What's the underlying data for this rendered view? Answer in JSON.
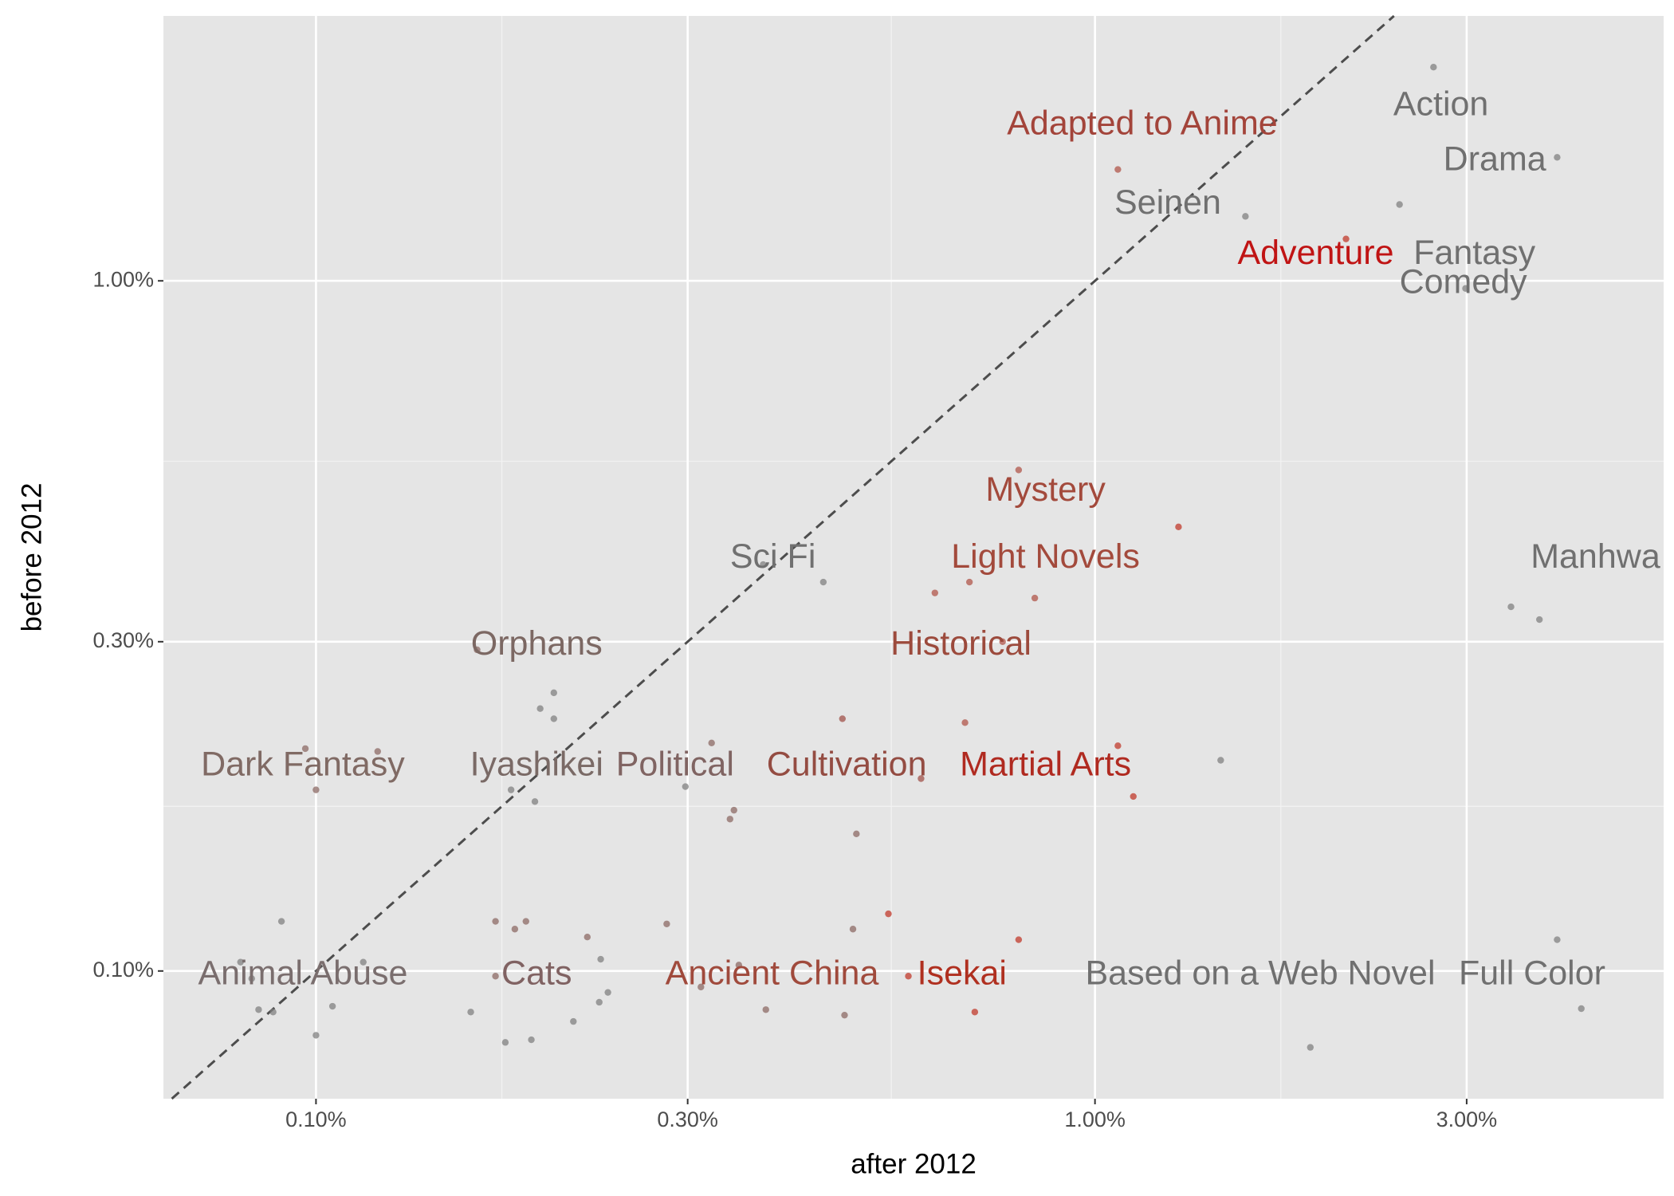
{
  "chart_data": {
    "type": "scatter",
    "x_label": "after 2012",
    "y_label": "before 2012",
    "xscale": "log",
    "yscale": "log",
    "xlim": [
      0.0637,
      5.37
    ],
    "ylim": [
      0.0653,
      2.42
    ],
    "xticks": [
      {
        "value": 0.1,
        "label": "0.10%"
      },
      {
        "value": 0.3,
        "label": "0.30%"
      },
      {
        "value": 1,
        "label": "1.00%"
      },
      {
        "value": 3,
        "label": "3.00%"
      }
    ],
    "yticks": [
      {
        "value": 0.1,
        "label": "0.10%"
      },
      {
        "value": 0.3,
        "label": "0.30%"
      },
      {
        "value": 1,
        "label": "1.00%"
      }
    ],
    "grid": true,
    "identity_line": true,
    "x": [
      2.72,
      3.92,
      1.07,
      2.46,
      1.56,
      2.1,
      2.99,
      0.798,
      1.28,
      0.448,
      0.623,
      0.69,
      0.837,
      3.42,
      3.72,
      0.375,
      0.761,
      0.161,
      0.202,
      0.194,
      0.202,
      0.474,
      0.681,
      0.0969,
      0.12,
      0.322,
      1.07,
      1.45,
      0.1,
      0.178,
      0.298,
      0.598,
      1.12,
      0.191,
      0.344,
      0.34,
      0.494,
      0.543,
      0.0903,
      0.17,
      0.186,
      0.18,
      0.282,
      0.489,
      0.798,
      0.223,
      3.92,
      0.08,
      0.115,
      0.232,
      0.349,
      0.17,
      0.576,
      0.0827,
      0.312,
      0.237,
      0.231,
      0.105,
      0.0844,
      0.0881,
      0.158,
      0.378,
      0.477,
      0.701,
      4.21,
      0.214,
      0.1,
      0.189,
      0.175,
      1.89
    ],
    "y": [
      2.04,
      1.51,
      1.45,
      1.29,
      1.24,
      1.15,
      0.975,
      0.532,
      0.44,
      0.366,
      0.353,
      0.366,
      0.347,
      0.337,
      0.323,
      0.388,
      0.3,
      0.292,
      0.253,
      0.24,
      0.232,
      0.232,
      0.229,
      0.21,
      0.208,
      0.214,
      0.212,
      0.202,
      0.183,
      0.183,
      0.185,
      0.19,
      0.179,
      0.176,
      0.171,
      0.166,
      0.158,
      0.121,
      0.118,
      0.118,
      0.118,
      0.115,
      0.117,
      0.115,
      0.111,
      0.112,
      0.111,
      0.103,
      0.103,
      0.104,
      0.102,
      0.0983,
      0.0983,
      0.0975,
      0.0948,
      0.0931,
      0.0901,
      0.0889,
      0.0879,
      0.0872,
      0.0872,
      0.0879,
      0.0863,
      0.0872,
      0.0882,
      0.0845,
      0.0807,
      0.0795,
      0.0788,
      0.0775
    ],
    "point_colors": [
      "#808080",
      "#808080",
      "#b0564a",
      "#808080",
      "#808080",
      "#c0392b",
      "#808080",
      "#b0564a",
      "#c0392b",
      "#808080",
      "#b0564a",
      "#b0564a",
      "#b0564a",
      "#808080",
      "#808080",
      "#808080",
      "#b0564a",
      "#8c6a64",
      "#808080",
      "#808080",
      "#808080",
      "#a0524a",
      "#b0564a",
      "#8c6a64",
      "#8c6a64",
      "#8c6a64",
      "#c0392b",
      "#808080",
      "#8c6a64",
      "#808080",
      "#808080",
      "#a0524a",
      "#c0392b",
      "#808080",
      "#8c6a64",
      "#8c6a64",
      "#8c6a64",
      "#c0392b",
      "#808080",
      "#8c6a64",
      "#8c6a64",
      "#8c6a64",
      "#8c6a64",
      "#8c6a64",
      "#c0392b",
      "#8c6a64",
      "#808080",
      "#808080",
      "#808080",
      "#808080",
      "#8c6a64",
      "#8c6a64",
      "#c0392b",
      "#808080",
      "#8c6a64",
      "#808080",
      "#808080",
      "#808080",
      "#808080",
      "#808080",
      "#808080",
      "#8c6a64",
      "#8c6a64",
      "#c0392b",
      "#808080",
      "#808080",
      "#808080",
      "#808080",
      "#808080",
      "#808080"
    ],
    "annotations": [
      {
        "text": "Action",
        "x": 2.78,
        "y": 1.79,
        "color": "#707070"
      },
      {
        "text": "Adapted to Anime",
        "x": 1.15,
        "y": 1.68,
        "color": "#a3443a"
      },
      {
        "text": "Drama",
        "x": 3.26,
        "y": 1.49,
        "color": "#707070"
      },
      {
        "text": "Seinen",
        "x": 1.24,
        "y": 1.29,
        "color": "#707070"
      },
      {
        "text": "Adventure",
        "x": 1.92,
        "y": 1.09,
        "color": "#c01414"
      },
      {
        "text": "Fantasy",
        "x": 3.07,
        "y": 1.09,
        "color": "#707070"
      },
      {
        "text": "Comedy",
        "x": 2.97,
        "y": 0.989,
        "color": "#707070"
      },
      {
        "text": "Mystery",
        "x": 0.864,
        "y": 0.495,
        "color": "#a34a3c"
      },
      {
        "text": "Sci Fi",
        "x": 0.386,
        "y": 0.396,
        "color": "#707070"
      },
      {
        "text": "Light Novels",
        "x": 0.864,
        "y": 0.396,
        "color": "#a34a3c"
      },
      {
        "text": "Manhwa",
        "x": 4.39,
        "y": 0.396,
        "color": "#707070"
      },
      {
        "text": "Orphans",
        "x": 0.192,
        "y": 0.296,
        "color": "#7c6863"
      },
      {
        "text": "Historical",
        "x": 0.673,
        "y": 0.296,
        "color": "#9c4a3c"
      },
      {
        "text": "Dark Fantasy",
        "x": 0.0962,
        "y": 0.198,
        "color": "#806a64"
      },
      {
        "text": "Iyashikei",
        "x": 0.192,
        "y": 0.198,
        "color": "#7a6a66"
      },
      {
        "text": "Political",
        "x": 0.289,
        "y": 0.198,
        "color": "#806462"
      },
      {
        "text": "Cultivation",
        "x": 0.48,
        "y": 0.198,
        "color": "#944c42"
      },
      {
        "text": "Martial Arts",
        "x": 0.864,
        "y": 0.198,
        "color": "#b02a20"
      },
      {
        "text": "Animal Abuse",
        "x": 0.0962,
        "y": 0.0986,
        "color": "#7a6e6e"
      },
      {
        "text": "Cats",
        "x": 0.192,
        "y": 0.0986,
        "color": "#806262"
      },
      {
        "text": "Ancient China",
        "x": 0.385,
        "y": 0.0986,
        "color": "#a04a3c"
      },
      {
        "text": "Isekai",
        "x": 0.675,
        "y": 0.0986,
        "color": "#b03020"
      },
      {
        "text": "Based on a Web Novel",
        "x": 1.63,
        "y": 0.0986,
        "color": "#707070"
      },
      {
        "text": "Full Color",
        "x": 3.64,
        "y": 0.0986,
        "color": "#707070"
      }
    ]
  }
}
